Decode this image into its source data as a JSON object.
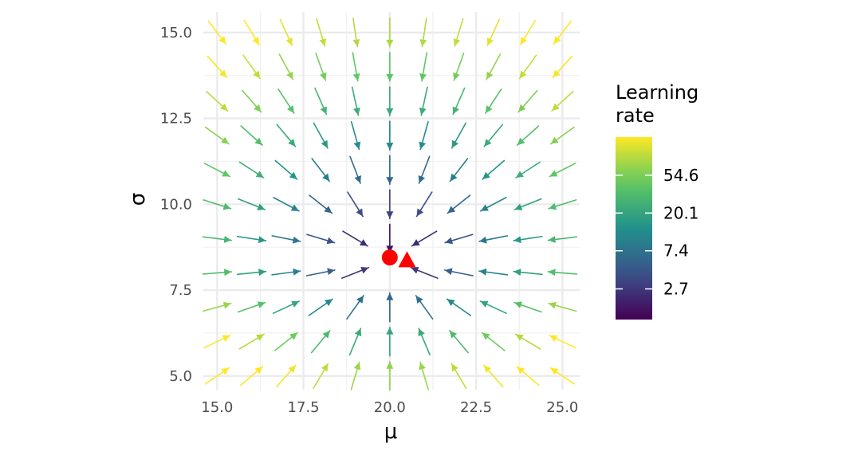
{
  "chart_data": {
    "type": "vector-field",
    "xlabel": "μ",
    "ylabel": "σ",
    "xlim": [
      14.6,
      25.5
    ],
    "ylim": [
      4.6,
      15.6
    ],
    "x_ticks": [
      15.0,
      17.5,
      20.0,
      22.5,
      25.0
    ],
    "x_tick_labels": [
      "15.0",
      "17.5",
      "20.0",
      "22.5",
      "25.0"
    ],
    "y_ticks": [
      5.0,
      7.5,
      10.0,
      12.5,
      15.0
    ],
    "y_tick_labels": [
      "5.0",
      "7.5",
      "10.0",
      "12.5",
      "15.0"
    ],
    "grid": true,
    "field": {
      "mu_values": [
        15,
        16,
        17,
        18,
        19,
        20,
        21,
        22,
        23,
        24,
        25
      ],
      "sigma_values": [
        5,
        6,
        7,
        8,
        9,
        10,
        11,
        12,
        13,
        14,
        15
      ],
      "equilibrium": {
        "mu": 20.0,
        "sigma": 8.4
      },
      "color_encodes": "learning rate (log scale)"
    },
    "points": [
      {
        "shape": "circle",
        "mu": 20.0,
        "sigma": 8.45,
        "color": "#ff0000"
      },
      {
        "shape": "triangle",
        "mu": 20.5,
        "sigma": 8.35,
        "color": "#ff0000"
      }
    ],
    "legend": {
      "title_lines": [
        "Learning",
        "rate"
      ],
      "position": "right",
      "scale": "log",
      "range": [
        1.2,
        150
      ],
      "ticks": [
        2.7,
        7.4,
        20.1,
        54.6
      ],
      "tick_labels": [
        "2.7",
        "7.4",
        "20.1",
        "54.6"
      ],
      "colormap": [
        "#440154",
        "#3b528b",
        "#21918c",
        "#5ec962",
        "#fde725"
      ]
    }
  }
}
